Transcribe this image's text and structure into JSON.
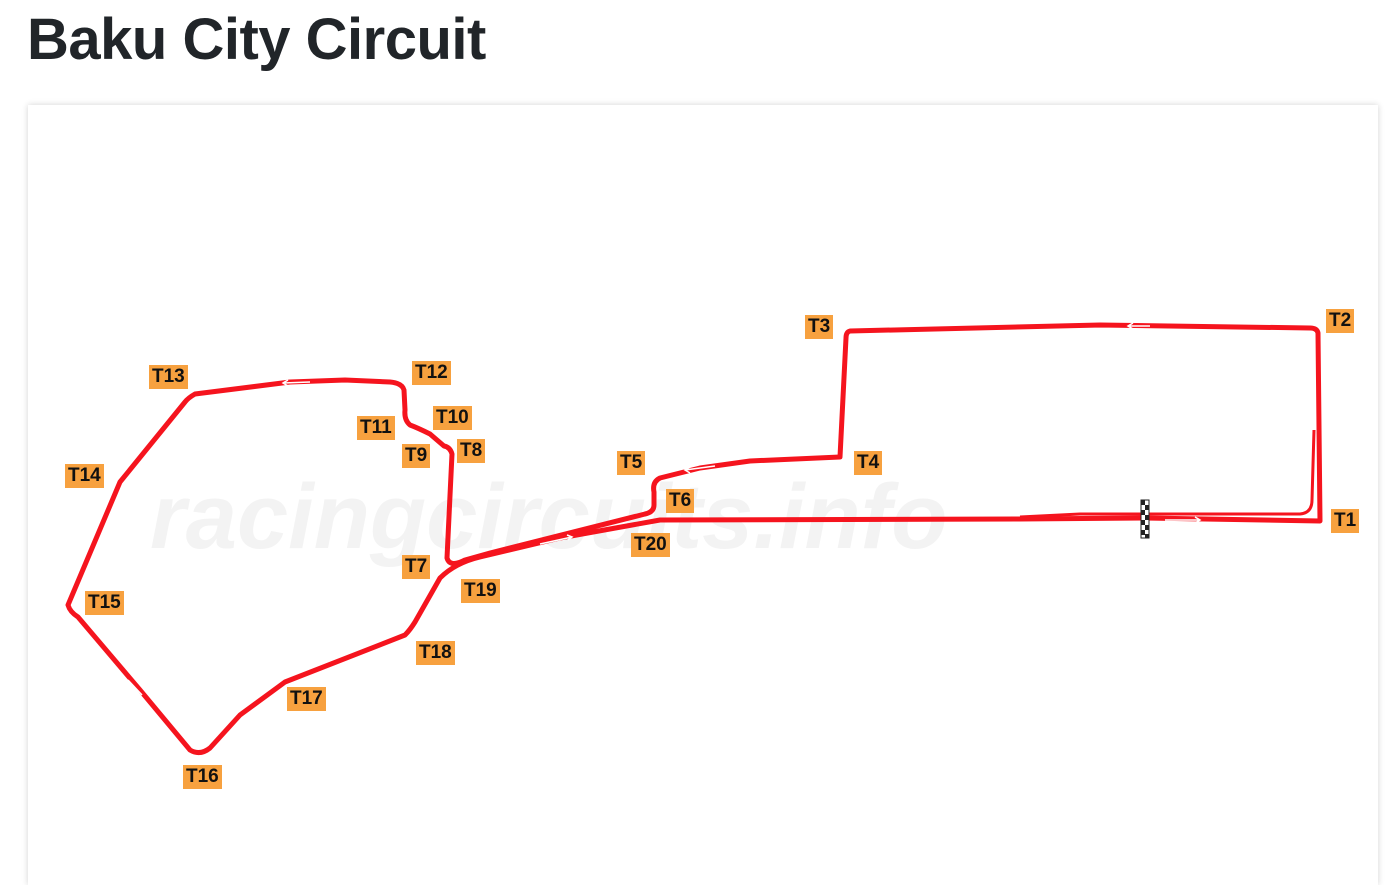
{
  "page": {
    "title": "Baku City Circuit"
  },
  "map": {
    "watermark": "racingcircuits.info",
    "track_color": "#f5141e",
    "label_color": "#f7a13f",
    "start_finish_icon": "checkered-flag-icon",
    "turns": [
      "T1",
      "T2",
      "T3",
      "T4",
      "T5",
      "T6",
      "T7",
      "T8",
      "T9",
      "T10",
      "T11",
      "T12",
      "T13",
      "T14",
      "T15",
      "T16",
      "T17",
      "T18",
      "T19",
      "T20"
    ]
  }
}
